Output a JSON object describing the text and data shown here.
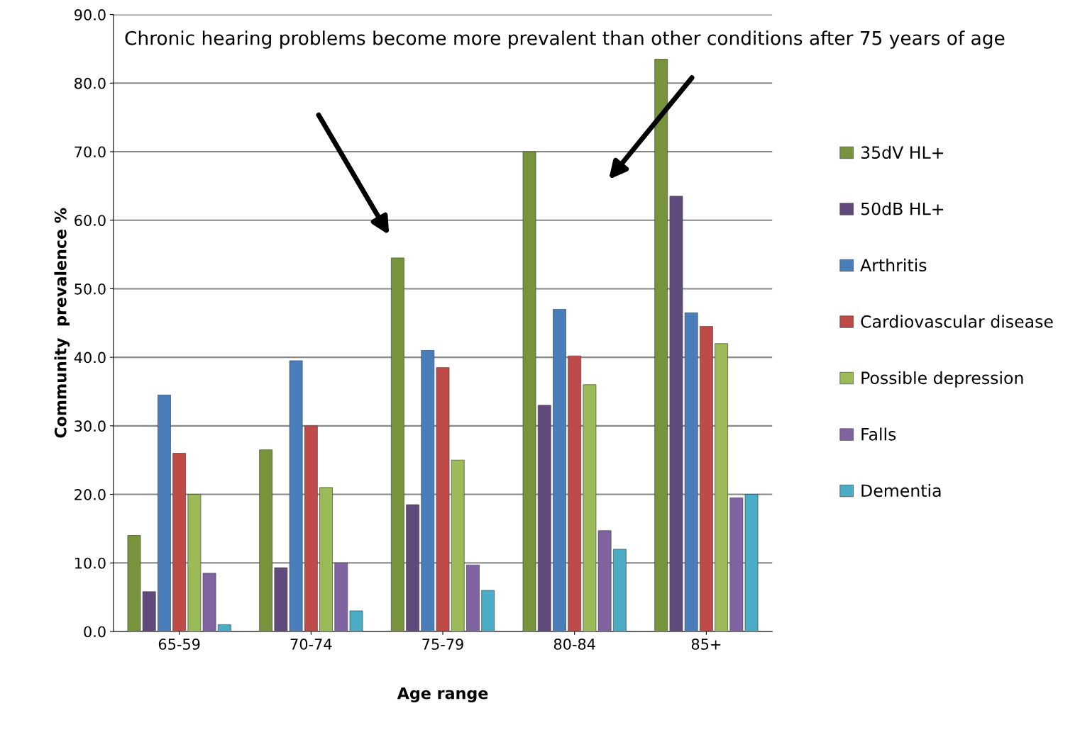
{
  "chart_data": {
    "type": "bar",
    "xlabel": "Age range",
    "ylabel": "Community  prevalence %",
    "categories": [
      "65-59",
      "70-74",
      "75-79",
      "80-84",
      "85+"
    ],
    "series": [
      {
        "name": "35dV HL+",
        "color": "#77933c",
        "values": [
          14,
          26.5,
          54.5,
          70,
          83.5
        ]
      },
      {
        "name": "50dB HL+",
        "color": "#604a7b",
        "values": [
          5.8,
          9.3,
          18.5,
          33,
          63.5
        ]
      },
      {
        "name": "Arthritis",
        "color": "#4a7ebb",
        "values": [
          34.5,
          39.5,
          41,
          47,
          46.5
        ]
      },
      {
        "name": "Cardiovascular disease",
        "color": "#be4b48",
        "values": [
          26,
          30,
          38.5,
          40.2,
          44.5
        ]
      },
      {
        "name": "Possible depression",
        "color": "#9bbb59",
        "values": [
          20,
          21,
          25,
          36,
          42
        ]
      },
      {
        "name": "Falls",
        "color": "#8064a2",
        "values": [
          8.5,
          10,
          9.7,
          14.7,
          19.5
        ]
      },
      {
        "name": "Dementia",
        "color": "#4bacc6",
        "values": [
          1,
          3,
          6,
          12,
          20
        ]
      }
    ],
    "ylim": [
      0,
      90
    ],
    "yticks": [
      {
        "value": 0,
        "label": "0.0"
      },
      {
        "value": 10,
        "label": "10.0"
      },
      {
        "value": 20,
        "label": "20.0"
      },
      {
        "value": 30,
        "label": "30.0"
      },
      {
        "value": 40,
        "label": "40.0"
      },
      {
        "value": 50,
        "label": "50.0"
      },
      {
        "value": 60,
        "label": "60.0"
      },
      {
        "value": 70,
        "label": "70.0"
      },
      {
        "value": 80,
        "label": "80.0"
      },
      {
        "value": 90,
        "label": "90.0"
      }
    ],
    "grid": "y",
    "legend": "right",
    "annotations": [
      "Chronic hearing problems become more prevalent than other conditions after 75 years of age"
    ]
  }
}
